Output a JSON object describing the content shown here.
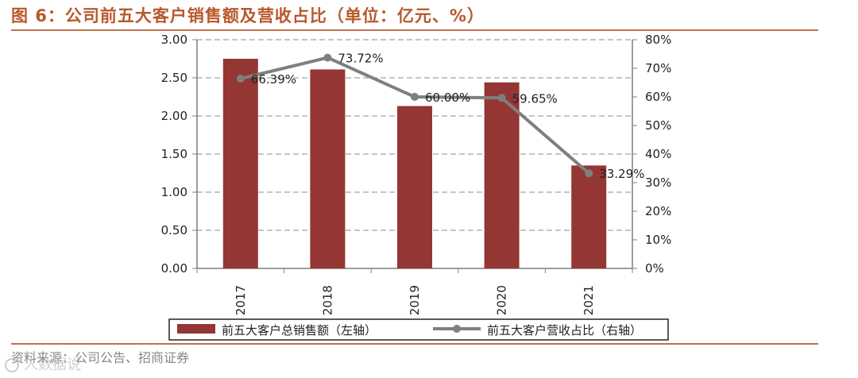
{
  "figure": {
    "title": "图 6：公司前五大客户销售额及营收占比（单位：亿元、%）",
    "source": "资料来源：公司公告、招商证券",
    "watermark": "人数据说"
  },
  "colors": {
    "bar": "#943634",
    "line": "#7f7f7f",
    "accent": "#c0704a",
    "title": "#b8582c"
  },
  "chart_data": {
    "type": "bar",
    "categories": [
      "2017",
      "2018",
      "2019",
      "2020",
      "2021"
    ],
    "series": [
      {
        "name": "前五大客户总销售额（左轴）",
        "type": "bar",
        "axis": "left",
        "values": [
          2.75,
          2.61,
          2.13,
          2.44,
          1.35
        ]
      },
      {
        "name": "前五大客户营收占比（右轴）",
        "type": "line",
        "axis": "right",
        "values": [
          66.39,
          73.72,
          60.0,
          59.65,
          33.29
        ],
        "labels": [
          "66.39%",
          "73.72%",
          "60.00%",
          "59.65%",
          "33.29%"
        ]
      }
    ],
    "y_left": {
      "ylim": [
        0,
        3
      ],
      "ticks": [
        "0.00",
        "0.50",
        "1.00",
        "1.50",
        "2.00",
        "2.50",
        "3.00"
      ]
    },
    "y_right": {
      "ylim": [
        0,
        80
      ],
      "ticks": [
        "0%",
        "10%",
        "20%",
        "30%",
        "40%",
        "50%",
        "60%",
        "70%",
        "80%"
      ]
    },
    "grid": true,
    "legend": "bottom"
  }
}
